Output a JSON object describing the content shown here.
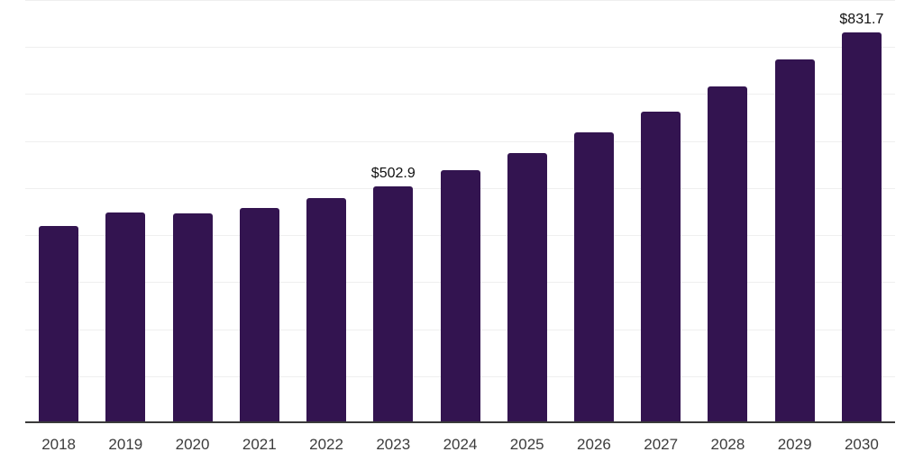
{
  "chart_data": {
    "type": "bar",
    "title": "",
    "xlabel": "",
    "ylabel": "",
    "categories": [
      "2018",
      "2019",
      "2020",
      "2021",
      "2022",
      "2023",
      "2024",
      "2025",
      "2026",
      "2027",
      "2028",
      "2029",
      "2030"
    ],
    "values": [
      420.1,
      447.4,
      446.2,
      457.3,
      478.9,
      502.9,
      537.4,
      575.4,
      617.8,
      663.5,
      716.0,
      773.1,
      831.7
    ],
    "data_labels": [
      "",
      "",
      "",
      "",
      "",
      "$502.9",
      "",
      "",
      "",
      "",
      "",
      "",
      "$831.7"
    ],
    "ylim": [
      0,
      900
    ],
    "gridline_step": 100,
    "grid": "horizontal-only",
    "legend": "none",
    "y_axis_tick_labels_visible": false
  },
  "colors": {
    "bar": "#331450",
    "gridline": "#efefef",
    "axis_line": "#3a3a3a",
    "tick_label": "#3c3c3c",
    "data_label": "#111111",
    "background": "#ffffff"
  }
}
